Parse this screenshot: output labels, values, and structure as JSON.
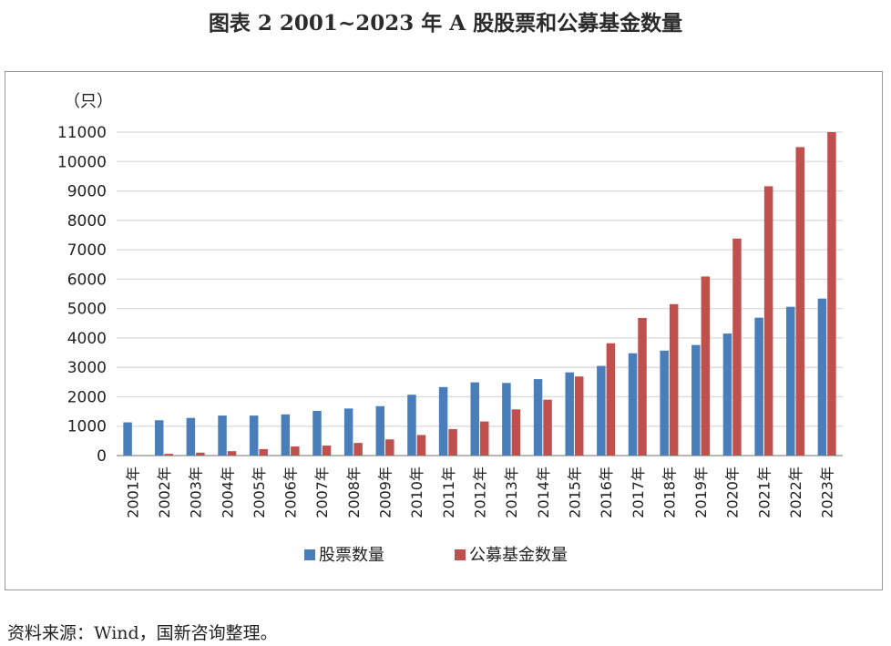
{
  "title": "图表 2  2001~2023 年 A 股股票和公募基金数量",
  "source": "资料来源：Wind，国新咨询整理。",
  "chart_data": {
    "type": "bar",
    "unit_label": "（只）",
    "categories": [
      "2001年",
      "2002年",
      "2003年",
      "2004年",
      "2005年",
      "2006年",
      "2007年",
      "2008年",
      "2009年",
      "2010年",
      "2011年",
      "2012年",
      "2013年",
      "2014年",
      "2015年",
      "2016年",
      "2017年",
      "2018年",
      "2019年",
      "2020年",
      "2021年",
      "2022年",
      "2023年"
    ],
    "ylim": [
      0,
      11000
    ],
    "yticks": [
      "0",
      "1000",
      "2000",
      "3000",
      "4000",
      "5000",
      "6000",
      "7000",
      "8000",
      "9000",
      "10000",
      "11000"
    ],
    "grid": true,
    "legend_position": "bottom",
    "series": [
      {
        "name": "股票数量",
        "color": "#4a7ebb",
        "values": [
          1130,
          1200,
          1280,
          1360,
          1360,
          1400,
          1520,
          1600,
          1680,
          2070,
          2330,
          2490,
          2470,
          2600,
          2830,
          3050,
          3480,
          3570,
          3760,
          4150,
          4690,
          5060,
          5340
        ]
      },
      {
        "name": "公募基金数量",
        "color": "#c0504d",
        "values": [
          0,
          60,
          100,
          150,
          220,
          310,
          340,
          430,
          550,
          700,
          900,
          1160,
          1570,
          1900,
          2690,
          3820,
          4680,
          5150,
          6090,
          7380,
          9160,
          10490,
          11000
        ]
      }
    ]
  }
}
